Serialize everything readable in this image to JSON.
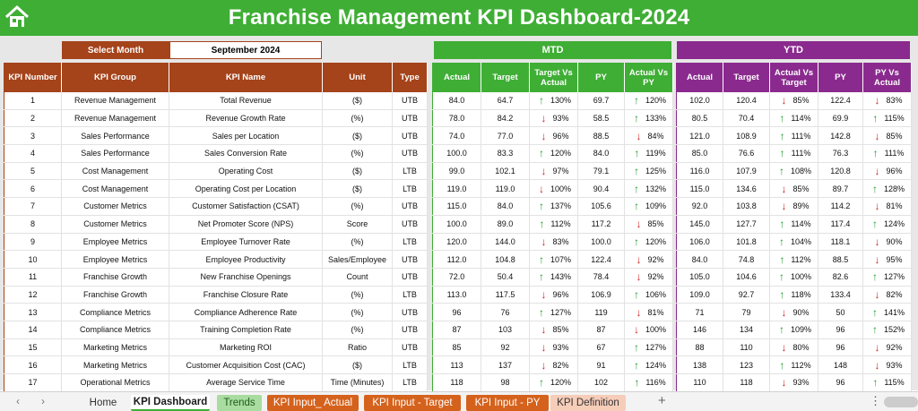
{
  "title": "Franchise Management KPI Dashboard-2024",
  "select_month": {
    "label": "Select Month",
    "value": "September 2024"
  },
  "mtd_label": "MTD",
  "ytd_label": "YTD",
  "colors": {
    "green": "#3fae35",
    "brown": "#a5431a",
    "purple": "#8a2a8e",
    "up": "#1e9b2f",
    "down": "#d11f1f"
  },
  "main_headers": [
    "KPI Number",
    "KPI Group",
    "KPI Name",
    "Unit",
    "Type"
  ],
  "mtd_headers": [
    "Actual",
    "Target",
    "Target Vs Actual",
    "PY",
    "Actual Vs PY"
  ],
  "ytd_headers": [
    "Actual",
    "Target",
    "Actual Vs Target",
    "PY",
    "PY Vs Actual"
  ],
  "rows": [
    {
      "num": "1",
      "group": "Revenue Management",
      "name": "Total Revenue",
      "unit": "($)",
      "type": "UTB",
      "mtd": {
        "actual": "84.0",
        "target": "64.7",
        "tva": "130%",
        "tva_dir": "up",
        "py": "69.7",
        "avp": "120%",
        "avp_dir": "up"
      },
      "ytd": {
        "actual": "102.0",
        "target": "120.4",
        "avt": "85%",
        "avt_dir": "down",
        "py": "122.4",
        "pva": "83%",
        "pva_dir": "down"
      }
    },
    {
      "num": "2",
      "group": "Revenue Management",
      "name": "Revenue Growth Rate",
      "unit": "(%)",
      "type": "UTB",
      "mtd": {
        "actual": "78.0",
        "target": "84.2",
        "tva": "93%",
        "tva_dir": "down",
        "py": "58.5",
        "avp": "133%",
        "avp_dir": "up"
      },
      "ytd": {
        "actual": "80.5",
        "target": "70.4",
        "avt": "114%",
        "avt_dir": "up",
        "py": "69.9",
        "pva": "115%",
        "pva_dir": "up"
      }
    },
    {
      "num": "3",
      "group": "Sales Performance",
      "name": "Sales per Location",
      "unit": "($)",
      "type": "UTB",
      "mtd": {
        "actual": "74.0",
        "target": "77.0",
        "tva": "96%",
        "tva_dir": "down",
        "py": "88.5",
        "avp": "84%",
        "avp_dir": "down"
      },
      "ytd": {
        "actual": "121.0",
        "target": "108.9",
        "avt": "111%",
        "avt_dir": "up",
        "py": "142.8",
        "pva": "85%",
        "pva_dir": "down"
      }
    },
    {
      "num": "4",
      "group": "Sales Performance",
      "name": "Sales Conversion Rate",
      "unit": "(%)",
      "type": "UTB",
      "mtd": {
        "actual": "100.0",
        "target": "83.3",
        "tva": "120%",
        "tva_dir": "up",
        "py": "84.0",
        "avp": "119%",
        "avp_dir": "up"
      },
      "ytd": {
        "actual": "85.0",
        "target": "76.6",
        "avt": "111%",
        "avt_dir": "up",
        "py": "76.3",
        "pva": "111%",
        "pva_dir": "up"
      }
    },
    {
      "num": "5",
      "group": "Cost Management",
      "name": "Operating Cost",
      "unit": "($)",
      "type": "LTB",
      "mtd": {
        "actual": "99.0",
        "target": "102.1",
        "tva": "97%",
        "tva_dir": "down",
        "py": "79.1",
        "avp": "125%",
        "avp_dir": "up"
      },
      "ytd": {
        "actual": "116.0",
        "target": "107.9",
        "avt": "108%",
        "avt_dir": "up",
        "py": "120.8",
        "pva": "96%",
        "pva_dir": "down"
      }
    },
    {
      "num": "6",
      "group": "Cost Management",
      "name": "Operating Cost per Location",
      "unit": "($)",
      "type": "LTB",
      "mtd": {
        "actual": "119.0",
        "target": "119.0",
        "tva": "100%",
        "tva_dir": "down",
        "py": "90.4",
        "avp": "132%",
        "avp_dir": "up"
      },
      "ytd": {
        "actual": "115.0",
        "target": "134.6",
        "avt": "85%",
        "avt_dir": "down",
        "py": "89.7",
        "pva": "128%",
        "pva_dir": "up"
      }
    },
    {
      "num": "7",
      "group": "Customer Metrics",
      "name": "Customer Satisfaction (CSAT)",
      "unit": "(%)",
      "type": "UTB",
      "mtd": {
        "actual": "115.0",
        "target": "84.0",
        "tva": "137%",
        "tva_dir": "up",
        "py": "105.6",
        "avp": "109%",
        "avp_dir": "up"
      },
      "ytd": {
        "actual": "92.0",
        "target": "103.8",
        "avt": "89%",
        "avt_dir": "down",
        "py": "114.2",
        "pva": "81%",
        "pva_dir": "down"
      }
    },
    {
      "num": "8",
      "group": "Customer Metrics",
      "name": "Net Promoter Score (NPS)",
      "unit": "Score",
      "type": "UTB",
      "mtd": {
        "actual": "100.0",
        "target": "89.0",
        "tva": "112%",
        "tva_dir": "up",
        "py": "117.2",
        "avp": "85%",
        "avp_dir": "down"
      },
      "ytd": {
        "actual": "145.0",
        "target": "127.7",
        "avt": "114%",
        "avt_dir": "up",
        "py": "117.4",
        "pva": "124%",
        "pva_dir": "up"
      }
    },
    {
      "num": "9",
      "group": "Employee Metrics",
      "name": "Employee Turnover Rate",
      "unit": "(%)",
      "type": "LTB",
      "mtd": {
        "actual": "120.0",
        "target": "144.0",
        "tva": "83%",
        "tva_dir": "down",
        "py": "100.0",
        "avp": "120%",
        "avp_dir": "up"
      },
      "ytd": {
        "actual": "106.0",
        "target": "101.8",
        "avt": "104%",
        "avt_dir": "up",
        "py": "118.1",
        "pva": "90%",
        "pva_dir": "down"
      }
    },
    {
      "num": "10",
      "group": "Employee Metrics",
      "name": "Employee Productivity",
      "unit": "Sales/Employee",
      "type": "UTB",
      "mtd": {
        "actual": "112.0",
        "target": "104.8",
        "tva": "107%",
        "tva_dir": "up",
        "py": "122.4",
        "avp": "92%",
        "avp_dir": "down"
      },
      "ytd": {
        "actual": "84.0",
        "target": "74.8",
        "avt": "112%",
        "avt_dir": "up",
        "py": "88.5",
        "pva": "95%",
        "pva_dir": "down"
      }
    },
    {
      "num": "11",
      "group": "Franchise Growth",
      "name": "New Franchise Openings",
      "unit": "Count",
      "type": "UTB",
      "mtd": {
        "actual": "72.0",
        "target": "50.4",
        "tva": "143%",
        "tva_dir": "up",
        "py": "78.4",
        "avp": "92%",
        "avp_dir": "down"
      },
      "ytd": {
        "actual": "105.0",
        "target": "104.6",
        "avt": "100%",
        "avt_dir": "up",
        "py": "82.6",
        "pva": "127%",
        "pva_dir": "up"
      }
    },
    {
      "num": "12",
      "group": "Franchise Growth",
      "name": "Franchise Closure Rate",
      "unit": "(%)",
      "type": "LTB",
      "mtd": {
        "actual": "113.0",
        "target": "117.5",
        "tva": "96%",
        "tva_dir": "down",
        "py": "106.9",
        "avp": "106%",
        "avp_dir": "up"
      },
      "ytd": {
        "actual": "109.0",
        "target": "92.7",
        "avt": "118%",
        "avt_dir": "up",
        "py": "133.4",
        "pva": "82%",
        "pva_dir": "down"
      }
    },
    {
      "num": "13",
      "group": "Compliance Metrics",
      "name": "Compliance Adherence Rate",
      "unit": "(%)",
      "type": "UTB",
      "mtd": {
        "actual": "96",
        "target": "76",
        "tva": "127%",
        "tva_dir": "up",
        "py": "119",
        "avp": "81%",
        "avp_dir": "down"
      },
      "ytd": {
        "actual": "71",
        "target": "79",
        "avt": "90%",
        "avt_dir": "down",
        "py": "50",
        "pva": "141%",
        "pva_dir": "up"
      }
    },
    {
      "num": "14",
      "group": "Compliance Metrics",
      "name": "Training Completion Rate",
      "unit": "(%)",
      "type": "UTB",
      "mtd": {
        "actual": "87",
        "target": "103",
        "tva": "85%",
        "tva_dir": "down",
        "py": "87",
        "avp": "100%",
        "avp_dir": "down"
      },
      "ytd": {
        "actual": "146",
        "target": "134",
        "avt": "109%",
        "avt_dir": "up",
        "py": "96",
        "pva": "152%",
        "pva_dir": "up"
      }
    },
    {
      "num": "15",
      "group": "Marketing Metrics",
      "name": "Marketing ROI",
      "unit": "Ratio",
      "type": "UTB",
      "mtd": {
        "actual": "85",
        "target": "92",
        "tva": "93%",
        "tva_dir": "down",
        "py": "67",
        "avp": "127%",
        "avp_dir": "up"
      },
      "ytd": {
        "actual": "88",
        "target": "110",
        "avt": "80%",
        "avt_dir": "down",
        "py": "96",
        "pva": "92%",
        "pva_dir": "down"
      }
    },
    {
      "num": "16",
      "group": "Marketing Metrics",
      "name": "Customer Acquisition Cost (CAC)",
      "unit": "($)",
      "type": "LTB",
      "mtd": {
        "actual": "113",
        "target": "137",
        "tva": "82%",
        "tva_dir": "down",
        "py": "91",
        "avp": "124%",
        "avp_dir": "up"
      },
      "ytd": {
        "actual": "138",
        "target": "123",
        "avt": "112%",
        "avt_dir": "up",
        "py": "148",
        "pva": "93%",
        "pva_dir": "down"
      }
    },
    {
      "num": "17",
      "group": "Operational Metrics",
      "name": "Average Service Time",
      "unit": "Time (Minutes)",
      "type": "LTB",
      "mtd": {
        "actual": "118",
        "target": "98",
        "tva": "120%",
        "tva_dir": "up",
        "py": "102",
        "avp": "116%",
        "avp_dir": "up"
      },
      "ytd": {
        "actual": "110",
        "target": "118",
        "avt": "93%",
        "avt_dir": "down",
        "py": "96",
        "pva": "115%",
        "pva_dir": "up"
      }
    }
  ],
  "tabs": [
    {
      "label": "Home",
      "style": "plain",
      "icon": ""
    },
    {
      "label": "KPI Dashboard",
      "style": "active",
      "icon": ""
    },
    {
      "label": "Trends",
      "style": "green",
      "icon": ""
    },
    {
      "label": "KPI Input_ Actual",
      "style": "orange",
      "icon": ""
    },
    {
      "label": "KPI Input - Target",
      "style": "orange",
      "icon": ""
    },
    {
      "label": "KPI Input - PY",
      "style": "orange",
      "icon": ""
    },
    {
      "label": "KPI Definition",
      "style": "peach",
      "icon": ""
    }
  ],
  "icons": {
    "home": "home-icon",
    "prev": "chevron-left-icon",
    "next": "chevron-right-icon",
    "add": "plus-icon",
    "more": "more-vertical-icon",
    "up": "arrow-up-icon",
    "down": "arrow-down-icon"
  }
}
